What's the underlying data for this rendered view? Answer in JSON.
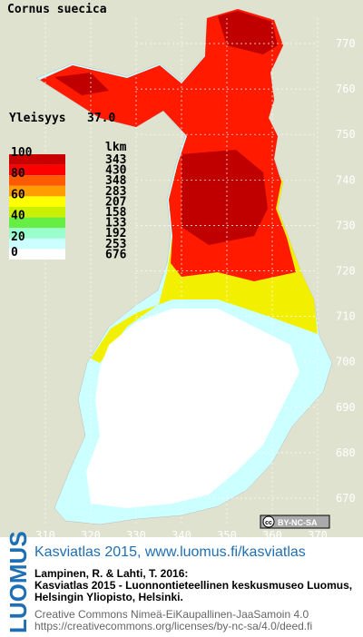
{
  "title": "Cornus suecica",
  "frequency": {
    "label": "Yleisyys",
    "value": "37.0"
  },
  "legend": {
    "header": "lkm",
    "scale_labels": [
      100,
      80,
      60,
      40,
      20,
      0
    ],
    "classes": [
      {
        "color": "#c80000",
        "count": 343
      },
      {
        "color": "#ff0000",
        "count": 430
      },
      {
        "color": "#ff5a00",
        "count": 348
      },
      {
        "color": "#ff9c00",
        "count": 283
      },
      {
        "color": "#ffff00",
        "count": 207
      },
      {
        "color": "#c8f000",
        "count": 158
      },
      {
        "color": "#66ee44",
        "count": 133
      },
      {
        "color": "#99ffcc",
        "count": 192
      },
      {
        "color": "#ccffff",
        "count": 253
      },
      {
        "color": "#ffffff",
        "count": 676
      }
    ]
  },
  "grid": {
    "y_labels": [
      770,
      760,
      750,
      740,
      730,
      720,
      710,
      700,
      690,
      680,
      670
    ],
    "x_labels": [
      310,
      320,
      330,
      340,
      350,
      360,
      370
    ]
  },
  "badge": {
    "icon": "cc",
    "text": "BY-NC-SA"
  },
  "footer": {
    "brand": "LUOMUS",
    "headline": "Kasviatlas 2015, www.luomus.fi/kasviatlas",
    "citation": [
      "Lampinen, R. & Lahti, T. 2016:",
      "Kasviatlas 2015 - Luonnontieteellinen keskusmuseo Luomus,",
      "Helsingin Yliopisto, Helsinki."
    ],
    "license": [
      "Creative Commons Nimeä-EiKaupallinen-JaaSamoin 4.0",
      "https://creativecommons.org/licenses/by-nc-sa/4.0/deed.fi"
    ]
  }
}
